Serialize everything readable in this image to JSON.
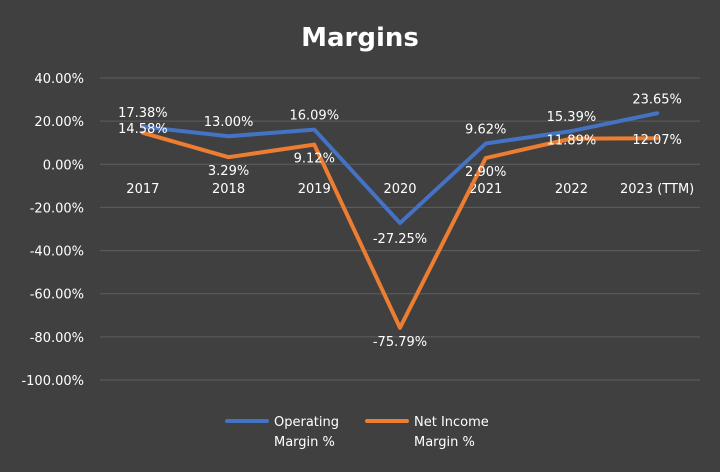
{
  "chart_data": {
    "type": "line",
    "title": "Margins",
    "categories": [
      "2017",
      "2018",
      "2019",
      "2020",
      "2021",
      "2022",
      "2023 (TTM)"
    ],
    "ylim": [
      -100,
      40
    ],
    "yticks": [
      "40.00%",
      "20.00%",
      "0.00%",
      "-20.00%",
      "-40.00%",
      "-60.00%",
      "-80.00%",
      "-100.00%"
    ],
    "ytick_values": [
      40,
      20,
      0,
      -20,
      -40,
      -60,
      -80,
      -100
    ],
    "grid": true,
    "legend_position": "bottom",
    "series": [
      {
        "name": "Operating Margin %",
        "legend_lines": [
          "Operating",
          "Margin %"
        ],
        "color": "#4472C4",
        "values": [
          17.38,
          13.0,
          16.09,
          -27.25,
          9.62,
          15.39,
          23.65
        ],
        "labels": [
          "17.38%",
          "13.00%",
          "16.09%",
          "-27.25%",
          "9.62%",
          "15.39%",
          "23.65%"
        ]
      },
      {
        "name": "Net Income Margin %",
        "legend_lines": [
          "Net Income",
          "Margin %"
        ],
        "color": "#ED7D31",
        "values": [
          14.58,
          3.29,
          9.12,
          -75.79,
          2.9,
          11.89,
          12.07
        ],
        "labels": [
          "14.58%",
          "3.29%",
          "9.12%",
          "-75.79%",
          "2.90%",
          "11.89%",
          "12.07%"
        ]
      }
    ]
  }
}
